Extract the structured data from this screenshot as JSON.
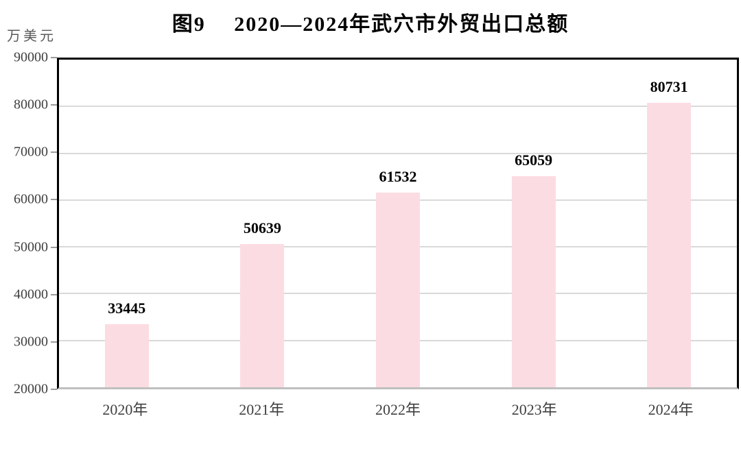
{
  "colors": {
    "bar_fill": "#fcdce3",
    "gridline": "#d9d9d9",
    "axis_border": "#000000",
    "axis_bottom": "#bfbfbf",
    "tick_text": "#3f3f3f",
    "value_label_text": "#000000",
    "unit_text": "#595959",
    "title_text": "#000000"
  },
  "chart_data": {
    "type": "bar",
    "title": "图9　 2020—2024年武穴市外贸出口总额",
    "xlabel": "",
    "ylabel": "万美元",
    "categories": [
      "2020年",
      "2021年",
      "2022年",
      "2023年",
      "2024年"
    ],
    "values": [
      33445,
      50639,
      61532,
      65059,
      80731
    ],
    "ylim": [
      20000,
      90000
    ],
    "yticks": [
      90000,
      80000,
      70000,
      60000,
      50000,
      40000,
      30000,
      20000
    ],
    "ytick_interval": 10000,
    "grid": true,
    "legend_position": "none"
  }
}
